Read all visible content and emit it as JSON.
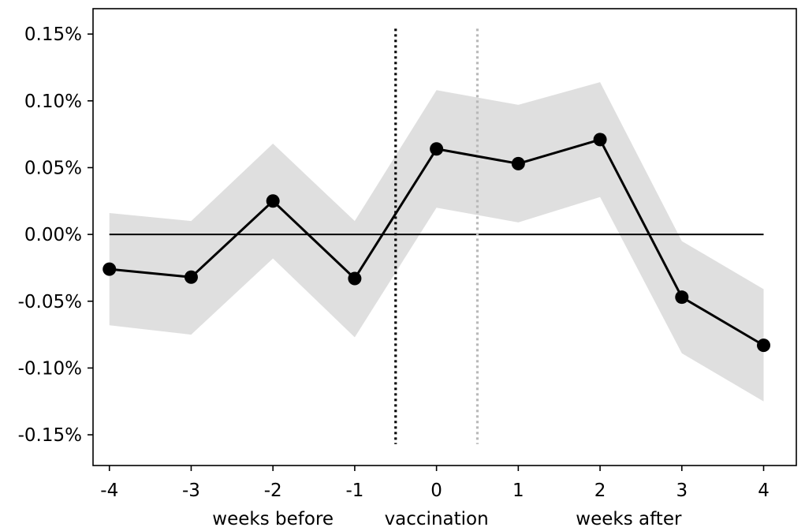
{
  "chart_data": {
    "type": "line",
    "x": [
      -4,
      -3,
      -2,
      -1,
      0,
      1,
      2,
      3,
      4
    ],
    "series": [
      {
        "values": [
          -0.026,
          -0.032,
          0.025,
          -0.033,
          0.064,
          0.053,
          0.071,
          -0.047,
          -0.083
        ],
        "ci_lower": [
          -0.068,
          -0.075,
          -0.018,
          -0.077,
          0.02,
          0.009,
          0.028,
          -0.089,
          -0.125
        ],
        "ci_upper": [
          0.016,
          0.01,
          0.068,
          0.01,
          0.108,
          0.097,
          0.114,
          -0.005,
          -0.041
        ],
        "color": "#000000",
        "band_color": "#d9d9d9"
      }
    ],
    "reference_line_y": 0,
    "vertical_lines": [
      {
        "x": -0.5,
        "style": "dotted",
        "color": "#000000"
      },
      {
        "x": 0.5,
        "style": "dotted",
        "color": "#b8b8b8"
      }
    ],
    "xlim": [
      -4.2,
      4.4
    ],
    "ylim": [
      -0.173,
      0.169
    ],
    "xticks": [
      -4,
      -3,
      -2,
      -1,
      0,
      1,
      2,
      3,
      4
    ],
    "xtick_labels": [
      "-4",
      "-3",
      "-2",
      "-1",
      "0",
      "1",
      "2",
      "3",
      "4"
    ],
    "yticks": [
      -0.15,
      -0.1,
      -0.05,
      0.0,
      0.05,
      0.1,
      0.15
    ],
    "ytick_labels": [
      "-0.15%",
      "-0.10%",
      "-0.05%",
      "0.00%",
      "0.05%",
      "0.10%",
      "0.15%"
    ],
    "x_group_labels": [
      {
        "text": "weeks before",
        "x": -2
      },
      {
        "text": "vaccination",
        "x": 0
      },
      {
        "text": "weeks after",
        "x": 2.35
      }
    ],
    "title": "",
    "xlabel": "",
    "ylabel": "",
    "grid": false
  }
}
